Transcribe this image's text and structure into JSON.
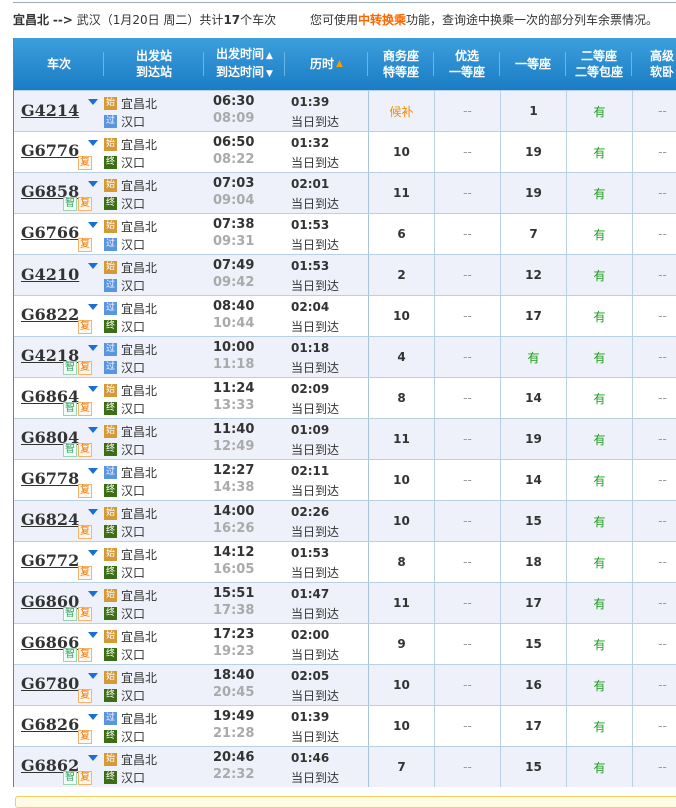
{
  "summary": {
    "from": "宜昌北",
    "arrow": "-->",
    "to": "武汉",
    "date": "（1月20日  周二）共计",
    "count": "17",
    "unit": "个车次",
    "hint_pre": "您可使用",
    "hint_link": "中转换乘",
    "hint_post": "功能，查询途中换乘一次的部分列车余票情况。"
  },
  "headers": {
    "train": "车次",
    "station1": "出发站",
    "station2": "到达站",
    "time1": "出发时间",
    "time2": "到达时间",
    "duration": "历时",
    "business1": "商务座",
    "business2": "特等座",
    "premium1": "优选",
    "premium2": "一等座",
    "first": "一等座",
    "second1": "二等座",
    "second2": "二等包座",
    "soft1": "高级",
    "soft2": "软卧"
  },
  "colors": {
    "header": "#1a7cc4",
    "start_badge": "#d49a3a",
    "pass_badge": "#5a95e0",
    "end_badge": "#3c6e16",
    "available": "#1a9b1a",
    "waitlist": "#f08c00"
  },
  "badge_labels": {
    "start": "始",
    "pass": "过",
    "end": "终",
    "zhi": "智",
    "fu": "复"
  },
  "trains": [
    {
      "no": "G4214",
      "tags": [],
      "from_type": "start",
      "from": "宜昌北",
      "to_type": "pass",
      "to": "汉口",
      "dep": "06:30",
      "arr": "08:09",
      "dur": "01:39",
      "day": "当日到达",
      "business": "候补",
      "premium": "--",
      "first": "1",
      "second": "有",
      "soft": "--"
    },
    {
      "no": "G6776",
      "tags": [
        "fu"
      ],
      "from_type": "start",
      "from": "宜昌北",
      "to_type": "end",
      "to": "汉口",
      "dep": "06:50",
      "arr": "08:22",
      "dur": "01:32",
      "day": "当日到达",
      "business": "10",
      "premium": "--",
      "first": "19",
      "second": "有",
      "soft": "--"
    },
    {
      "no": "G6858",
      "tags": [
        "zhi",
        "fu"
      ],
      "from_type": "start",
      "from": "宜昌北",
      "to_type": "end",
      "to": "汉口",
      "dep": "07:03",
      "arr": "09:04",
      "dur": "02:01",
      "day": "当日到达",
      "business": "11",
      "premium": "--",
      "first": "19",
      "second": "有",
      "soft": "--"
    },
    {
      "no": "G6766",
      "tags": [
        "fu"
      ],
      "from_type": "start",
      "from": "宜昌北",
      "to_type": "pass",
      "to": "汉口",
      "dep": "07:38",
      "arr": "09:31",
      "dur": "01:53",
      "day": "当日到达",
      "business": "6",
      "premium": "--",
      "first": "7",
      "second": "有",
      "soft": "--"
    },
    {
      "no": "G4210",
      "tags": [],
      "from_type": "start",
      "from": "宜昌北",
      "to_type": "pass",
      "to": "汉口",
      "dep": "07:49",
      "arr": "09:42",
      "dur": "01:53",
      "day": "当日到达",
      "business": "2",
      "premium": "--",
      "first": "12",
      "second": "有",
      "soft": "--"
    },
    {
      "no": "G6822",
      "tags": [
        "fu"
      ],
      "from_type": "pass",
      "from": "宜昌北",
      "to_type": "end",
      "to": "汉口",
      "dep": "08:40",
      "arr": "10:44",
      "dur": "02:04",
      "day": "当日到达",
      "business": "10",
      "premium": "--",
      "first": "17",
      "second": "有",
      "soft": "--"
    },
    {
      "no": "G4218",
      "tags": [
        "zhi",
        "fu"
      ],
      "from_type": "pass",
      "from": "宜昌北",
      "to_type": "pass",
      "to": "汉口",
      "dep": "10:00",
      "arr": "11:18",
      "dur": "01:18",
      "day": "当日到达",
      "business": "4",
      "premium": "--",
      "first": "有",
      "second": "有",
      "soft": "--"
    },
    {
      "no": "G6864",
      "tags": [
        "zhi",
        "fu"
      ],
      "from_type": "start",
      "from": "宜昌北",
      "to_type": "end",
      "to": "汉口",
      "dep": "11:24",
      "arr": "13:33",
      "dur": "02:09",
      "day": "当日到达",
      "business": "8",
      "premium": "--",
      "first": "14",
      "second": "有",
      "soft": "--"
    },
    {
      "no": "G6804",
      "tags": [
        "zhi",
        "fu"
      ],
      "from_type": "start",
      "from": "宜昌北",
      "to_type": "end",
      "to": "汉口",
      "dep": "11:40",
      "arr": "12:49",
      "dur": "01:09",
      "day": "当日到达",
      "business": "11",
      "premium": "--",
      "first": "19",
      "second": "有",
      "soft": "--"
    },
    {
      "no": "G6778",
      "tags": [
        "fu"
      ],
      "from_type": "pass",
      "from": "宜昌北",
      "to_type": "end",
      "to": "汉口",
      "dep": "12:27",
      "arr": "14:38",
      "dur": "02:11",
      "day": "当日到达",
      "business": "10",
      "premium": "--",
      "first": "14",
      "second": "有",
      "soft": "--"
    },
    {
      "no": "G6824",
      "tags": [
        "fu"
      ],
      "from_type": "start",
      "from": "宜昌北",
      "to_type": "end",
      "to": "汉口",
      "dep": "14:00",
      "arr": "16:26",
      "dur": "02:26",
      "day": "当日到达",
      "business": "10",
      "premium": "--",
      "first": "15",
      "second": "有",
      "soft": "--"
    },
    {
      "no": "G6772",
      "tags": [
        "fu"
      ],
      "from_type": "start",
      "from": "宜昌北",
      "to_type": "end",
      "to": "汉口",
      "dep": "14:12",
      "arr": "16:05",
      "dur": "01:53",
      "day": "当日到达",
      "business": "8",
      "premium": "--",
      "first": "18",
      "second": "有",
      "soft": "--"
    },
    {
      "no": "G6860",
      "tags": [
        "zhi",
        "fu"
      ],
      "from_type": "start",
      "from": "宜昌北",
      "to_type": "end",
      "to": "汉口",
      "dep": "15:51",
      "arr": "17:38",
      "dur": "01:47",
      "day": "当日到达",
      "business": "11",
      "premium": "--",
      "first": "17",
      "second": "有",
      "soft": "--"
    },
    {
      "no": "G6866",
      "tags": [
        "zhi",
        "fu"
      ],
      "from_type": "start",
      "from": "宜昌北",
      "to_type": "end",
      "to": "汉口",
      "dep": "17:23",
      "arr": "19:23",
      "dur": "02:00",
      "day": "当日到达",
      "business": "9",
      "premium": "--",
      "first": "15",
      "second": "有",
      "soft": "--"
    },
    {
      "no": "G6780",
      "tags": [
        "fu"
      ],
      "from_type": "start",
      "from": "宜昌北",
      "to_type": "end",
      "to": "汉口",
      "dep": "18:40",
      "arr": "20:45",
      "dur": "02:05",
      "day": "当日到达",
      "business": "10",
      "premium": "--",
      "first": "16",
      "second": "有",
      "soft": "--"
    },
    {
      "no": "G6826",
      "tags": [
        "fu"
      ],
      "from_type": "pass",
      "from": "宜昌北",
      "to_type": "end",
      "to": "汉口",
      "dep": "19:49",
      "arr": "21:28",
      "dur": "01:39",
      "day": "当日到达",
      "business": "10",
      "premium": "--",
      "first": "17",
      "second": "有",
      "soft": "--"
    },
    {
      "no": "G6862",
      "tags": [
        "zhi",
        "fu"
      ],
      "from_type": "start",
      "from": "宜昌北",
      "to_type": "end",
      "to": "汉口",
      "dep": "20:46",
      "arr": "22:32",
      "dur": "01:46",
      "day": "当日到达",
      "business": "7",
      "premium": "--",
      "first": "15",
      "second": "有",
      "soft": "--"
    }
  ]
}
